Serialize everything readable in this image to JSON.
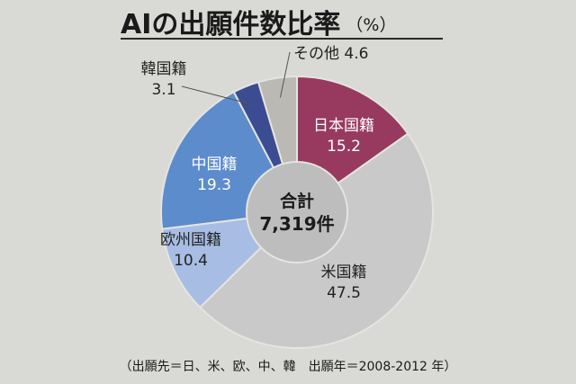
{
  "title": "AIの出願件数比率",
  "title_unit": "（%）",
  "footnote": "（出願先＝日、米、欧、中、韓　出願年＝2008-2012 年）",
  "chart_data": {
    "type": "pie",
    "style": "donut",
    "unit": "%",
    "center_label": "合計",
    "center_value": "7,319件",
    "slices": [
      {
        "name": "日本国籍",
        "value": 15.2,
        "value_label": "15.2",
        "color": "#983a5f",
        "label_color": "#ffffff"
      },
      {
        "name": "米国籍",
        "value": 47.5,
        "value_label": "47.5",
        "color": "#c9c9c9",
        "label_color": "#222222"
      },
      {
        "name": "欧州国籍",
        "value": 10.4,
        "value_label": "10.4",
        "color": "#a8bde3",
        "label_color": "#222222"
      },
      {
        "name": "中国籍",
        "value": 19.3,
        "value_label": "19.3",
        "color": "#5d8ccc",
        "label_color": "#ffffff"
      },
      {
        "name": "韓国籍",
        "value": 3.1,
        "value_label": "3.1",
        "color": "#3b4c92",
        "label_color": "#222222"
      },
      {
        "name": "その他",
        "value": 4.6,
        "value_label": "4.6",
        "color": "#bbb9b4",
        "label_color": "#222222"
      }
    ],
    "legend": "none"
  }
}
